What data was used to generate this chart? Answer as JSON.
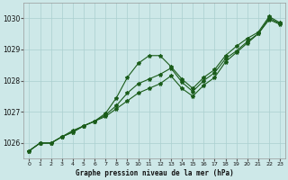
{
  "title": "Graphe pression niveau de la mer (hPa)",
  "x": [
    0,
    1,
    2,
    3,
    4,
    5,
    6,
    7,
    8,
    9,
    10,
    11,
    12,
    13,
    14,
    15,
    16,
    17,
    18,
    19,
    20,
    21,
    22,
    23
  ],
  "line_wavy": [
    1025.75,
    1026.0,
    1026.0,
    1026.2,
    1026.4,
    1026.55,
    1026.7,
    1026.95,
    1027.45,
    1028.1,
    1028.55,
    1028.8,
    1028.8,
    1028.45,
    1028.05,
    1027.75,
    1028.1,
    1028.35,
    1028.8,
    1029.1,
    1029.35,
    1029.55,
    1030.05,
    1029.85
  ],
  "line_mid": [
    1025.75,
    1026.0,
    1026.0,
    1026.2,
    1026.35,
    1026.55,
    1026.7,
    1026.9,
    1027.2,
    1027.6,
    1027.9,
    1028.05,
    1028.2,
    1028.4,
    1027.95,
    1027.65,
    1028.0,
    1028.25,
    1028.7,
    1028.95,
    1029.25,
    1029.5,
    1030.0,
    1029.82
  ],
  "line_straight": [
    1025.75,
    1026.0,
    1026.0,
    1026.2,
    1026.35,
    1026.55,
    1026.7,
    1026.85,
    1027.1,
    1027.35,
    1027.6,
    1027.75,
    1027.9,
    1028.15,
    1027.75,
    1027.5,
    1027.85,
    1028.1,
    1028.6,
    1028.9,
    1029.2,
    1029.5,
    1029.95,
    1029.8
  ],
  "line_color": "#1a5c1a",
  "bg_color": "#cde8e8",
  "grid_color": "#aacfcf",
  "ylim": [
    1025.5,
    1030.5
  ],
  "yticks": [
    1026,
    1027,
    1028,
    1029,
    1030
  ],
  "xticks": [
    0,
    1,
    2,
    3,
    4,
    5,
    6,
    7,
    8,
    9,
    10,
    11,
    12,
    13,
    14,
    15,
    16,
    17,
    18,
    19,
    20,
    21,
    22,
    23
  ]
}
